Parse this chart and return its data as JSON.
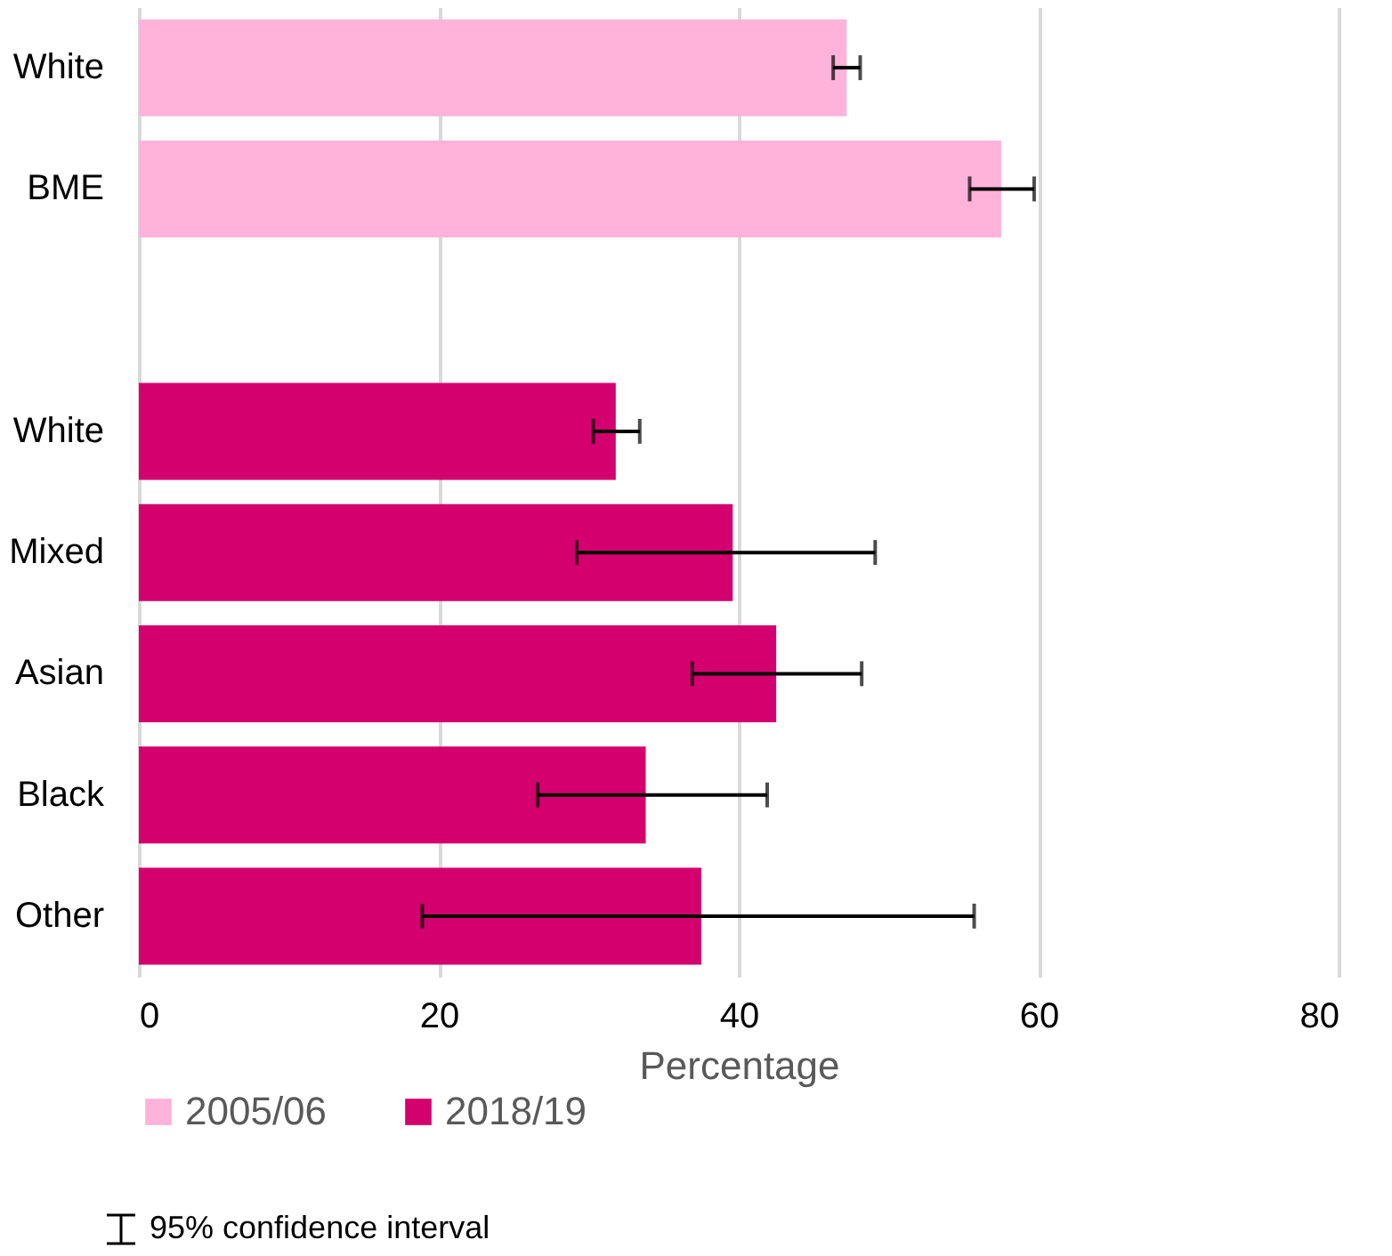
{
  "chart_data": {
    "type": "bar",
    "orientation": "horizontal",
    "xlabel": "Percentage",
    "categories": [
      "White",
      "BME",
      null,
      "White",
      "Mixed",
      "Asian",
      "Black",
      "Other"
    ],
    "series": [
      {
        "name": "2005/06",
        "color": "#ffb3da",
        "values": [
          47.2,
          57.5,
          null,
          null,
          null,
          null,
          null,
          null
        ],
        "errors": [
          [
            46.3,
            48.1
          ],
          [
            55.4,
            59.7
          ],
          null,
          null,
          null,
          null,
          null,
          null
        ]
      },
      {
        "name": "2018/19",
        "color": "#d4006e",
        "values": [
          null,
          null,
          null,
          31.8,
          39.6,
          42.5,
          33.8,
          37.5
        ],
        "errors": [
          null,
          null,
          null,
          [
            30.3,
            33.4
          ],
          [
            29.2,
            49.1
          ],
          [
            36.9,
            48.2
          ],
          [
            26.6,
            41.9
          ],
          [
            18.9,
            55.7
          ]
        ]
      }
    ],
    "xlim": [
      0,
      80
    ],
    "xticks": [
      0,
      20,
      40,
      60,
      80
    ],
    "grid": "x",
    "legend": "bottom",
    "annotations": [
      "95% confidence interval"
    ]
  }
}
